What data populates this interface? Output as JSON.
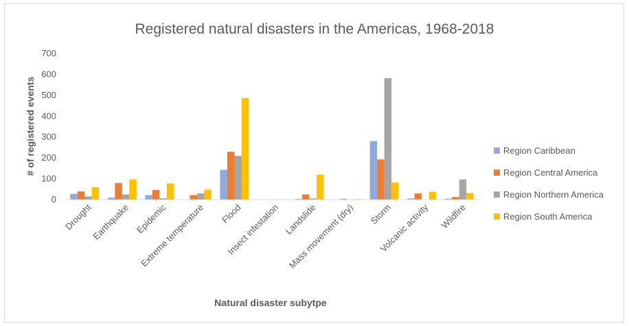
{
  "chart_data": {
    "type": "bar",
    "title": "Registered natural disasters in the Americas, 1968-2018",
    "xlabel": "Natural disaster subytpe",
    "ylabel": "# of registered events",
    "ylim": [
      0,
      700
    ],
    "yticks": [
      "0",
      "100",
      "200",
      "300",
      "400",
      "500",
      "600",
      "700"
    ],
    "grid": false,
    "legend_position": "right",
    "categories": [
      "Drought",
      "Earthquake",
      "Epidemic",
      "Extreme temperature",
      "Flood",
      "Insect infestation",
      "Landslide",
      "Mass movement (dry)",
      "Storm",
      "Volcanic activity",
      "Wildfire"
    ],
    "series": [
      {
        "name": "Region Caribbean",
        "color": "#8faadc",
        "values": [
          28,
          10,
          22,
          0,
          143,
          0,
          4,
          0,
          281,
          6,
          5
        ]
      },
      {
        "name": "Region Central America",
        "color": "#ed7d31",
        "values": [
          40,
          80,
          47,
          22,
          230,
          0,
          25,
          4,
          193,
          30,
          13
        ]
      },
      {
        "name": "Region Northern America",
        "color": "#a5a5a5",
        "values": [
          16,
          25,
          7,
          30,
          210,
          0,
          6,
          0,
          582,
          0,
          97
        ]
      },
      {
        "name": "Region South America",
        "color": "#ffc000",
        "values": [
          60,
          97,
          78,
          48,
          487,
          2,
          120,
          3,
          82,
          38,
          32
        ]
      }
    ]
  }
}
